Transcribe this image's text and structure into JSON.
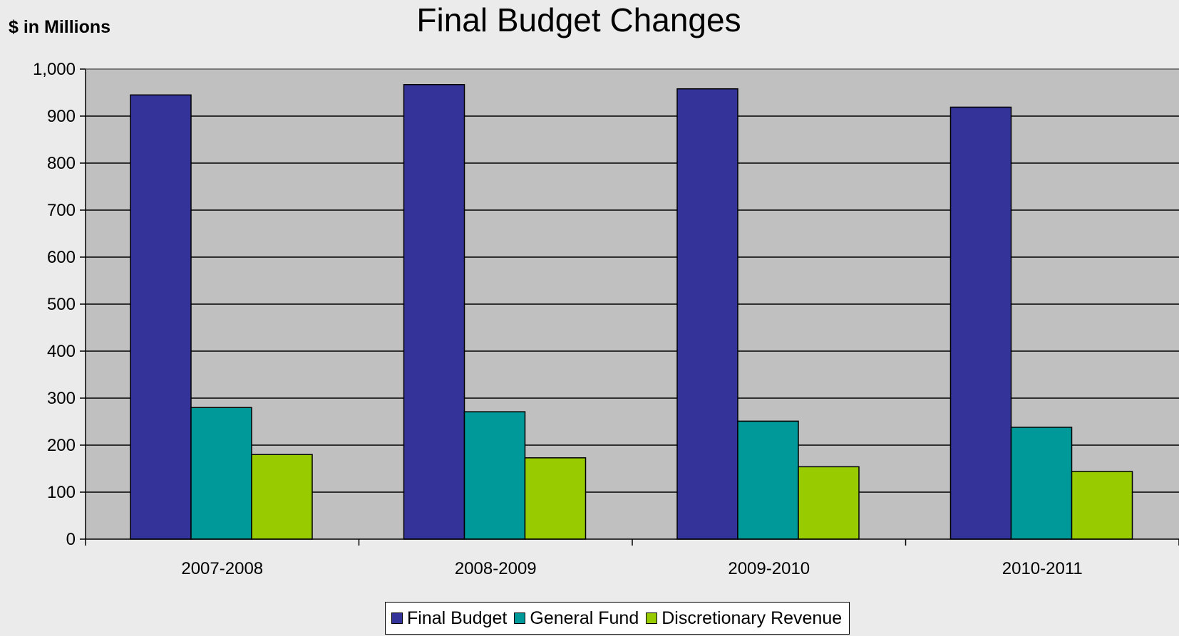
{
  "chart_data": {
    "type": "bar",
    "title": "Final Budget Changes",
    "ylabel": "$ in Millions",
    "xlabel": "",
    "categories": [
      "2007-2008",
      "2008-2009",
      "2009-2010",
      "2010-2011"
    ],
    "series": [
      {
        "name": "Final Budget",
        "color": "#333399",
        "values": [
          945,
          967,
          958,
          919
        ]
      },
      {
        "name": "General Fund",
        "color": "#009999",
        "values": [
          280,
          271,
          251,
          238
        ]
      },
      {
        "name": "Discretionary Revenue",
        "color": "#99cc00",
        "values": [
          180,
          173,
          154,
          144
        ]
      }
    ],
    "ylim": [
      0,
      1000
    ],
    "yticks": [
      0,
      100,
      200,
      300,
      400,
      500,
      600,
      700,
      800,
      900,
      1000
    ],
    "ytick_labels": [
      "0",
      "100",
      "200",
      "300",
      "400",
      "500",
      "600",
      "700",
      "800",
      "900",
      "1,000"
    ],
    "grid": true,
    "legend_position": "bottom-center",
    "plot_background": "#c0c0c0"
  }
}
